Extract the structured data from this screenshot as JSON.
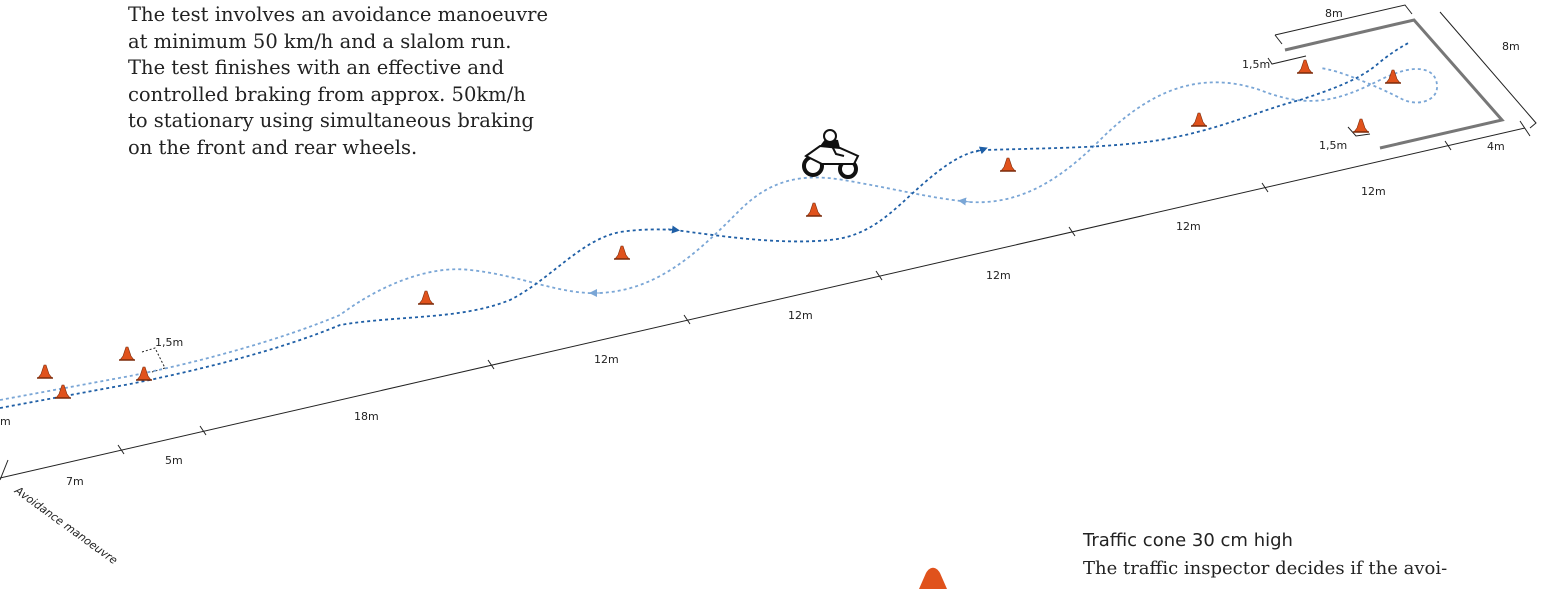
{
  "intro": {
    "lines": [
      "The test involves an avoidance manoeuvre",
      "at minimum 50 km/h and a slalom run.",
      "The test finishes with an effective and",
      "controlled braking from approx. 50km/h",
      "to stationary using simultaneous braking",
      "on the front and rear wheels."
    ]
  },
  "dimensions": {
    "box_top": "8m",
    "box_side": "8m",
    "box_end": "4m",
    "gap_upper": "1,5m",
    "gap_lower": "1,5m",
    "gate": "1,5m",
    "seg_1": "12m",
    "seg_2": "12m",
    "seg_3": "12m",
    "seg_4": "12m",
    "seg_5": "12m",
    "seg_6": "18m",
    "seg_7": "5m",
    "seg_8": "7m",
    "edge_left": "m"
  },
  "labels": {
    "avoidance": "Avoidance manoeuvre",
    "cone_title": "Traffic cone 30 cm high",
    "cone_text": "The traffic inspector decides if the avoi-"
  },
  "colors": {
    "cone": "#e0521c",
    "path_dark": "#1f5fa6",
    "path_light": "#7aa6d6",
    "box": "#777777"
  }
}
